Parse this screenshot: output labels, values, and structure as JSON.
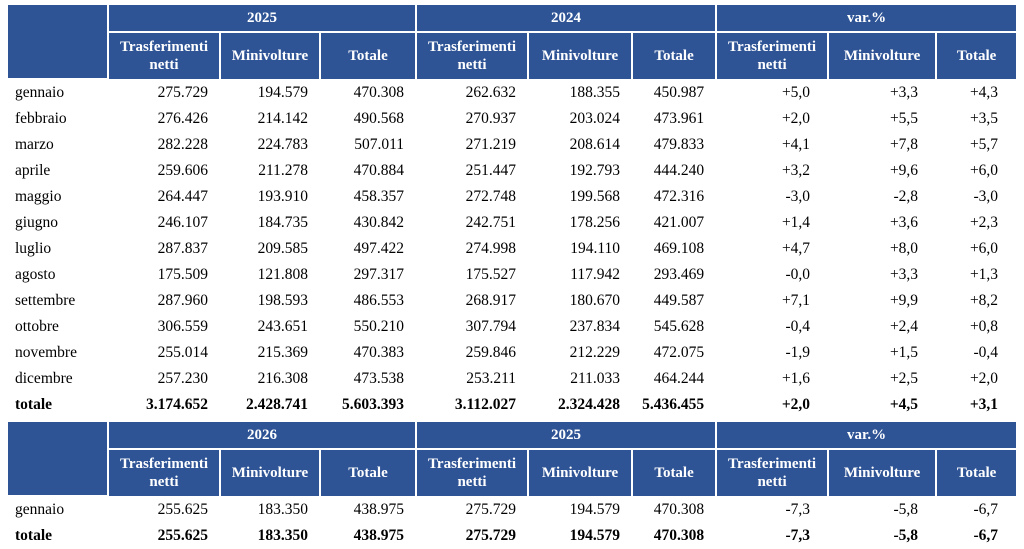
{
  "colors": {
    "header_bg": "#2F5496",
    "header_text": "#FFFFFF",
    "body_text": "#000000"
  },
  "tables": [
    {
      "groups": [
        "2025",
        "2024",
        "var.%"
      ],
      "sub_headers": [
        "Trasferimenti netti",
        "Minivolture",
        "Totale"
      ],
      "rows": [
        {
          "label": "gennaio",
          "bold": false,
          "values": [
            "275.729",
            "194.579",
            "470.308",
            "262.632",
            "188.355",
            "450.987",
            "+5,0",
            "+3,3",
            "+4,3"
          ]
        },
        {
          "label": "febbraio",
          "bold": false,
          "values": [
            "276.426",
            "214.142",
            "490.568",
            "270.937",
            "203.024",
            "473.961",
            "+2,0",
            "+5,5",
            "+3,5"
          ]
        },
        {
          "label": "marzo",
          "bold": false,
          "values": [
            "282.228",
            "224.783",
            "507.011",
            "271.219",
            "208.614",
            "479.833",
            "+4,1",
            "+7,8",
            "+5,7"
          ]
        },
        {
          "label": "aprile",
          "bold": false,
          "values": [
            "259.606",
            "211.278",
            "470.884",
            "251.447",
            "192.793",
            "444.240",
            "+3,2",
            "+9,6",
            "+6,0"
          ]
        },
        {
          "label": "maggio",
          "bold": false,
          "values": [
            "264.447",
            "193.910",
            "458.357",
            "272.748",
            "199.568",
            "472.316",
            "-3,0",
            "-2,8",
            "-3,0"
          ]
        },
        {
          "label": "giugno",
          "bold": false,
          "values": [
            "246.107",
            "184.735",
            "430.842",
            "242.751",
            "178.256",
            "421.007",
            "+1,4",
            "+3,6",
            "+2,3"
          ]
        },
        {
          "label": "luglio",
          "bold": false,
          "values": [
            "287.837",
            "209.585",
            "497.422",
            "274.998",
            "194.110",
            "469.108",
            "+4,7",
            "+8,0",
            "+6,0"
          ]
        },
        {
          "label": "agosto",
          "bold": false,
          "values": [
            "175.509",
            "121.808",
            "297.317",
            "175.527",
            "117.942",
            "293.469",
            "-0,0",
            "+3,3",
            "+1,3"
          ]
        },
        {
          "label": "settembre",
          "bold": false,
          "values": [
            "287.960",
            "198.593",
            "486.553",
            "268.917",
            "180.670",
            "449.587",
            "+7,1",
            "+9,9",
            "+8,2"
          ]
        },
        {
          "label": "ottobre",
          "bold": false,
          "values": [
            "306.559",
            "243.651",
            "550.210",
            "307.794",
            "237.834",
            "545.628",
            "-0,4",
            "+2,4",
            "+0,8"
          ]
        },
        {
          "label": "novembre",
          "bold": false,
          "values": [
            "255.014",
            "215.369",
            "470.383",
            "259.846",
            "212.229",
            "472.075",
            "-1,9",
            "+1,5",
            "-0,4"
          ]
        },
        {
          "label": "dicembre",
          "bold": false,
          "values": [
            "257.230",
            "216.308",
            "473.538",
            "253.211",
            "211.033",
            "464.244",
            "+1,6",
            "+2,5",
            "+2,0"
          ]
        },
        {
          "label": "totale",
          "bold": true,
          "values": [
            "3.174.652",
            "2.428.741",
            "5.603.393",
            "3.112.027",
            "2.324.428",
            "5.436.455",
            "+2,0",
            "+4,5",
            "+3,1"
          ]
        }
      ]
    },
    {
      "groups": [
        "2026",
        "2025",
        "var.%"
      ],
      "sub_headers": [
        "Trasferimenti netti",
        "Minivolture",
        "Totale"
      ],
      "rows": [
        {
          "label": "gennaio",
          "bold": false,
          "values": [
            "255.625",
            "183.350",
            "438.975",
            "275.729",
            "194.579",
            "470.308",
            "-7,3",
            "-5,8",
            "-6,7"
          ]
        },
        {
          "label": "totale",
          "bold": true,
          "values": [
            "255.625",
            "183.350",
            "438.975",
            "275.729",
            "194.579",
            "470.308",
            "-7,3",
            "-5,8",
            "-6,7"
          ]
        }
      ]
    }
  ]
}
